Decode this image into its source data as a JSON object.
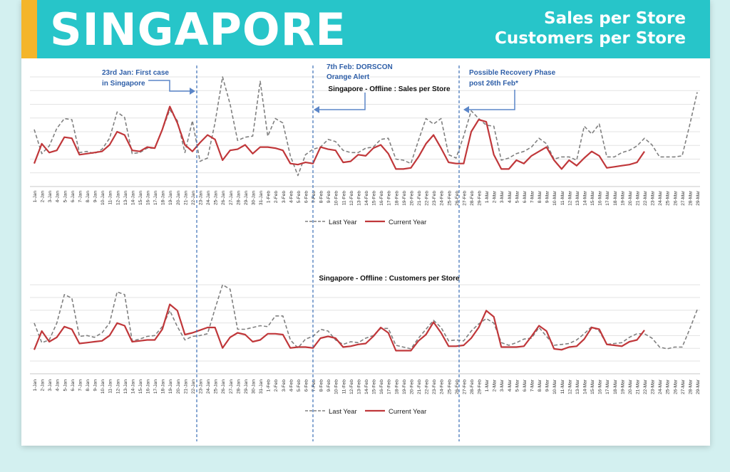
{
  "header": {
    "title": "SINGAPORE",
    "subtitle_line1": "Sales per Store",
    "subtitle_line2": "Customers per Store"
  },
  "annotations": {
    "first_case_line1": "23rd Jan: First case",
    "first_case_line2": "in Singapore",
    "dorscon_line1": "7th Feb: DORSCON",
    "dorscon_line2": "Orange Alert",
    "recovery_line1": "Possible Recovery Phase",
    "recovery_line2": "post 26th Feb*"
  },
  "colors": {
    "header_bg": "#27c5c9",
    "accent": "#f4b52a",
    "last_year": "#808080",
    "current_year": "#c0373a",
    "marker_lines": "#3b6fb6"
  },
  "chart_data": [
    {
      "type": "line",
      "title": "Singapore - Offline : Sales per Store",
      "categories": [
        "1-Jan",
        "2-Jan",
        "3-Jan",
        "4-Jan",
        "5-Jan",
        "6-Jan",
        "7-Jan",
        "8-Jan",
        "9-Jan",
        "10-Jan",
        "11-Jan",
        "12-Jan",
        "13-Jan",
        "14-Jan",
        "15-Jan",
        "16-Jan",
        "17-Jan",
        "18-Jan",
        "19-Jan",
        "20-Jan",
        "21-Jan",
        "22-Jan",
        "23-Jan",
        "24-Jan",
        "25-Jan",
        "26-Jan",
        "27-Jan",
        "28-Jan",
        "29-Jan",
        "30-Jan",
        "31-Jan",
        "1-Feb",
        "2-Feb",
        "3-Feb",
        "4-Feb",
        "5-Feb",
        "6-Feb",
        "7-Feb",
        "8-Feb",
        "9-Feb",
        "10-Feb",
        "11-Feb",
        "12-Feb",
        "13-Feb",
        "14-Feb",
        "15-Feb",
        "16-Feb",
        "17-Feb",
        "18-Feb",
        "19-Feb",
        "20-Feb",
        "21-Feb",
        "22-Feb",
        "23-Feb",
        "24-Feb",
        "25-Feb",
        "26-Feb",
        "27-Feb",
        "28-Feb",
        "29-Feb",
        "1-Mar",
        "2-Mar",
        "3-Mar",
        "4-Mar",
        "5-Mar",
        "6-Mar",
        "7-Mar",
        "8-Mar",
        "9-Mar",
        "10-Mar",
        "11-Mar",
        "12-Mar",
        "13-Mar",
        "14-Mar",
        "15-Mar",
        "16-Mar",
        "17-Mar",
        "18-Mar",
        "19-Mar",
        "20-Mar",
        "21-Mar",
        "22-Mar",
        "23-Mar",
        "24-Mar",
        "25-Mar",
        "26-Mar",
        "27-Mar",
        "28-Mar",
        "29-Mar"
      ],
      "series": [
        {
          "name": "Last Year",
          "values": [
            52,
            30,
            37,
            53,
            62,
            61,
            31,
            32,
            30,
            34,
            44,
            68,
            63,
            30,
            31,
            35,
            35,
            52,
            70,
            60,
            31,
            60,
            23,
            26,
            58,
            100,
            75,
            42,
            45,
            46,
            96,
            46,
            62,
            58,
            28,
            10,
            29,
            34,
            36,
            43,
            41,
            33,
            31,
            31,
            35,
            36,
            43,
            44,
            25,
            24,
            21,
            42,
            62,
            57,
            62,
            29,
            26,
            46,
            69,
            62,
            56,
            55,
            24,
            26,
            30,
            32,
            36,
            44,
            39,
            25,
            27,
            27,
            24,
            55,
            48,
            57,
            27,
            27,
            31,
            33,
            37,
            44,
            38,
            27,
            27,
            27,
            28,
            56,
            86
          ]
        },
        {
          "name": "Current Year",
          "values": [
            21,
            39,
            31,
            33,
            45,
            44,
            29,
            30,
            31,
            32,
            38,
            50,
            47,
            33,
            32,
            36,
            35,
            52,
            73,
            58,
            38,
            32,
            40,
            47,
            43,
            24,
            33,
            34,
            38,
            30,
            36,
            36,
            35,
            33,
            21,
            20,
            22,
            21,
            36,
            34,
            33,
            22,
            23,
            29,
            28,
            35,
            38,
            30,
            16,
            16,
            17,
            27,
            39,
            47,
            35,
            22,
            21,
            21,
            50,
            61,
            59,
            29,
            16,
            16,
            24,
            21,
            28,
            32,
            36,
            24,
            16,
            24,
            19,
            26,
            32,
            28,
            17,
            18,
            19,
            20,
            22,
            32,
            0,
            0,
            0,
            0,
            0,
            0,
            0
          ]
        }
      ]
    },
    {
      "type": "line",
      "title": "Singapore - Offline : Customers per Store",
      "categories": [
        "1-Jan",
        "2-Jan",
        "3-Jan",
        "4-Jan",
        "5-Jan",
        "6-Jan",
        "7-Jan",
        "8-Jan",
        "9-Jan",
        "10-Jan",
        "11-Jan",
        "12-Jan",
        "13-Jan",
        "14-Jan",
        "15-Jan",
        "16-Jan",
        "17-Jan",
        "18-Jan",
        "19-Jan",
        "20-Jan",
        "21-Jan",
        "22-Jan",
        "23-Jan",
        "24-Jan",
        "25-Jan",
        "26-Jan",
        "27-Jan",
        "28-Jan",
        "29-Jan",
        "30-Jan",
        "31-Jan",
        "1-Feb",
        "2-Feb",
        "3-Feb",
        "4-Feb",
        "5-Feb",
        "6-Feb",
        "7-Feb",
        "8-Feb",
        "9-Feb",
        "10-Feb",
        "11-Feb",
        "12-Feb",
        "13-Feb",
        "14-Feb",
        "15-Feb",
        "16-Feb",
        "17-Feb",
        "18-Feb",
        "19-Feb",
        "20-Feb",
        "21-Feb",
        "22-Feb",
        "23-Feb",
        "24-Feb",
        "25-Feb",
        "26-Feb",
        "27-Feb",
        "28-Feb",
        "29-Feb",
        "1-Mar",
        "2-Mar",
        "3-Mar",
        "4-Mar",
        "5-Mar",
        "6-Mar",
        "7-Mar",
        "8-Mar",
        "9-Mar",
        "10-Mar",
        "11-Mar",
        "12-Mar",
        "13-Mar",
        "14-Mar",
        "15-Mar",
        "16-Mar",
        "17-Mar",
        "18-Mar",
        "19-Mar",
        "20-Mar",
        "21-Mar",
        "22-Mar",
        "23-Mar",
        "24-Mar",
        "25-Mar",
        "26-Mar",
        "27-Mar",
        "28-Mar",
        "29-Mar"
      ],
      "series": [
        {
          "name": "Last Year",
          "values": [
            57,
            35,
            38,
            57,
            89,
            85,
            42,
            43,
            41,
            46,
            57,
            92,
            89,
            37,
            39,
            42,
            43,
            53,
            71,
            53,
            38,
            42,
            43,
            45,
            73,
            100,
            95,
            50,
            50,
            52,
            54,
            53,
            65,
            65,
            38,
            29,
            39,
            42,
            50,
            48,
            38,
            33,
            36,
            35,
            40,
            43,
            51,
            51,
            32,
            30,
            28,
            40,
            50,
            60,
            52,
            37,
            38,
            37,
            48,
            56,
            62,
            57,
            35,
            32,
            35,
            39,
            40,
            52,
            42,
            32,
            33,
            34,
            38,
            45,
            53,
            48,
            33,
            34,
            35,
            41,
            45,
            45,
            40,
            30,
            28,
            30,
            30,
            50,
            72
          ]
        },
        {
          "name": "Current Year",
          "values": [
            27,
            48,
            36,
            41,
            53,
            50,
            34,
            35,
            36,
            37,
            43,
            57,
            54,
            36,
            37,
            38,
            38,
            50,
            78,
            71,
            44,
            46,
            49,
            52,
            52,
            29,
            41,
            46,
            44,
            36,
            38,
            45,
            45,
            44,
            29,
            30,
            30,
            29,
            40,
            42,
            40,
            30,
            31,
            33,
            34,
            42,
            52,
            46,
            26,
            26,
            26,
            37,
            44,
            58,
            46,
            31,
            31,
            32,
            40,
            52,
            71,
            64,
            30,
            30,
            30,
            31,
            42,
            54,
            48,
            28,
            27,
            30,
            31,
            39,
            52,
            50,
            33,
            32,
            31,
            36,
            38,
            49,
            0,
            0,
            0,
            0,
            0,
            0,
            0
          ]
        }
      ]
    }
  ],
  "legend": {
    "last_year": "Last Year",
    "current_year": "Current Year"
  }
}
